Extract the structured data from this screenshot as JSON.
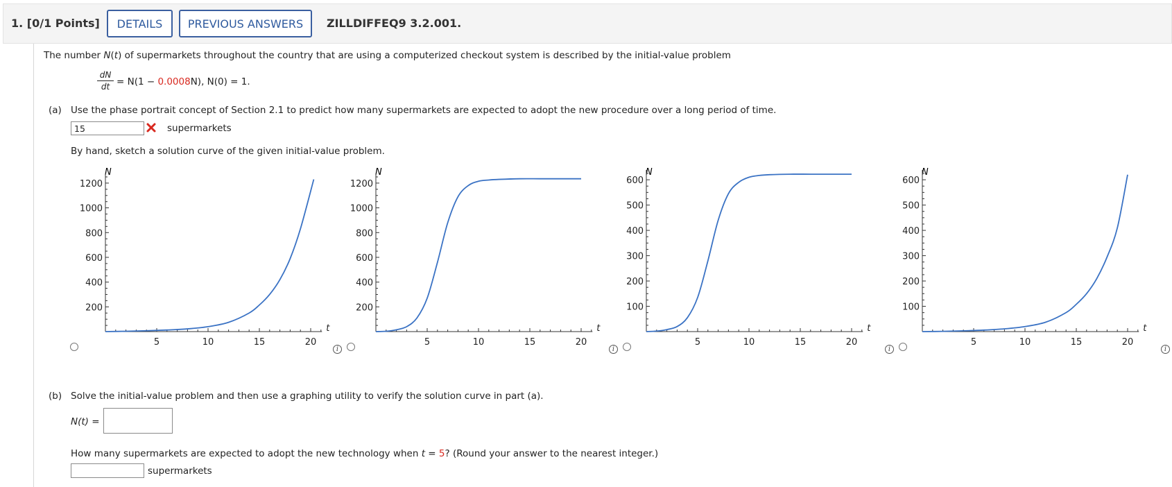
{
  "header": {
    "question_number": "1.",
    "points": "[0/1 Points]",
    "details_label": "DETAILS",
    "previous_answers_label": "PREVIOUS ANSWERS",
    "question_id": "ZILLDIFFEQ9 3.2.001."
  },
  "intro": {
    "pre": "The number ",
    "func": "N",
    "paren_open": "(",
    "var": "t",
    "post": ") of supermarkets throughout the country that are using a computerized checkout system is described by the initial-value problem"
  },
  "equation": {
    "numerator": "dN",
    "denominator": "dt",
    "rhs_pre": " = N(1 − ",
    "coefficient": "0.0008",
    "rhs_post": "N),    N(0) = 1."
  },
  "part_a": {
    "label": "(a)",
    "prompt": "Use the phase portrait concept of Section 2.1 to predict how many supermarkets are expected to adopt the new procedure over a long period of time.",
    "answer_value": "15",
    "answer_status": "incorrect",
    "unit": "supermarkets",
    "sketch_prompt": "By hand, sketch a solution curve of the given initial-value problem."
  },
  "graphs": [
    {
      "ylabel": "N",
      "xlabel": "t",
      "xticks": [
        "5",
        "10",
        "15",
        "20"
      ],
      "yticks": [
        "200",
        "400",
        "600",
        "800",
        "1000",
        "1200"
      ],
      "shape": "exponential"
    },
    {
      "ylabel": "N",
      "xlabel": "t",
      "xticks": [
        "5",
        "10",
        "15",
        "20"
      ],
      "yticks": [
        "200",
        "400",
        "600",
        "800",
        "1000",
        "1200"
      ],
      "shape": "logistic"
    },
    {
      "ylabel": "N",
      "xlabel": "t",
      "xticks": [
        "5",
        "10",
        "15",
        "20"
      ],
      "yticks": [
        "100",
        "200",
        "300",
        "400",
        "500",
        "600"
      ],
      "shape": "logistic"
    },
    {
      "ylabel": "N",
      "xlabel": "t",
      "xticks": [
        "5",
        "10",
        "15",
        "20"
      ],
      "yticks": [
        "100",
        "200",
        "300",
        "400",
        "500",
        "600"
      ],
      "shape": "exponential"
    }
  ],
  "chart_data": [
    {
      "type": "line",
      "xlabel": "t",
      "ylabel": "N",
      "xlim": [
        0,
        20
      ],
      "ylim": [
        0,
        1250
      ],
      "x": [
        0,
        2,
        4,
        6,
        8,
        10,
        12,
        14,
        15,
        16,
        17,
        18,
        19,
        20.3
      ],
      "series": [
        {
          "values": [
            0,
            3,
            7,
            13,
            22,
            40,
            75,
            150,
            215,
            300,
            420,
            590,
            830,
            1230
          ]
        }
      ]
    },
    {
      "type": "line",
      "xlabel": "t",
      "ylabel": "N",
      "xlim": [
        0,
        20
      ],
      "ylim": [
        0,
        1250
      ],
      "x": [
        0,
        1,
        2,
        3,
        4,
        5,
        6,
        7,
        8,
        9,
        10,
        11,
        12,
        14,
        16,
        18,
        20
      ],
      "series": [
        {
          "values": [
            0,
            3,
            15,
            40,
            110,
            270,
            560,
            880,
            1090,
            1180,
            1215,
            1225,
            1230,
            1235,
            1235,
            1235,
            1235
          ]
        }
      ]
    },
    {
      "type": "line",
      "xlabel": "t",
      "ylabel": "N",
      "xlim": [
        0,
        20
      ],
      "ylim": [
        0,
        625
      ],
      "x": [
        0,
        1,
        2,
        3,
        4,
        5,
        6,
        7,
        8,
        9,
        10,
        11,
        12,
        14,
        16,
        18,
        20
      ],
      "series": [
        {
          "values": [
            0,
            2,
            8,
            20,
            55,
            135,
            280,
            440,
            545,
            590,
            610,
            617,
            620,
            622,
            622,
            622,
            622
          ]
        }
      ]
    },
    {
      "type": "line",
      "xlabel": "t",
      "ylabel": "N",
      "xlim": [
        0,
        20
      ],
      "ylim": [
        0,
        625
      ],
      "x": [
        0,
        2,
        4,
        6,
        8,
        10,
        12,
        14,
        15,
        16,
        17,
        18,
        19,
        20
      ],
      "series": [
        {
          "values": [
            0,
            1,
            3,
            6,
            11,
            20,
            37,
            75,
            108,
            150,
            210,
            295,
            410,
            620
          ]
        }
      ]
    }
  ],
  "part_b": {
    "label": "(b)",
    "prompt": "Solve the initial-value problem and then use a graphing utility to verify the solution curve in part (a).",
    "nt_label": "N(t) =",
    "nt_value": "",
    "q_pre": "How many supermarkets are expected to adopt the new technology when ",
    "q_var": "t",
    "q_eq": " = ",
    "q_val": "5",
    "q_post": "? (Round your answer to the nearest integer.)",
    "count_value": "",
    "unit": "supermarkets"
  },
  "colors": {
    "curve": "#3a72c4",
    "incorrect": "#d8281f",
    "button_border": "#3a5fa0",
    "highlight": "#d8281f"
  }
}
